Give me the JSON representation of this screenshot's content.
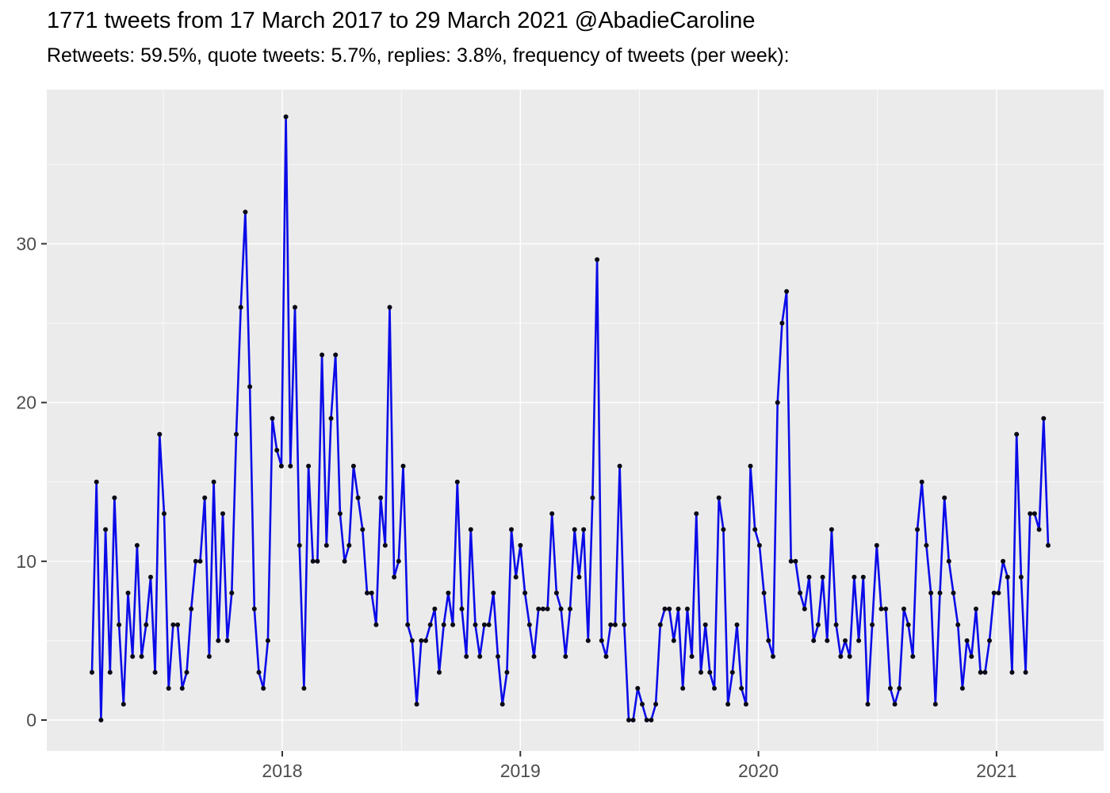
{
  "header": {
    "title": "1771 tweets from 17 March 2017 to 29 March 2021 @AbadieCaroline",
    "subtitle": "Retweets: 59.5%, quote tweets: 5.7%, replies: 3.8%, frequency of tweets (per week):"
  },
  "chart_data": {
    "type": "line",
    "title": "1771 tweets from 17 March 2017 to 29 March 2021 @AbadieCaroline",
    "subtitle": "Retweets: 59.5%, quote tweets: 5.7%, replies: 3.8%, frequency of tweets (per week):",
    "series_name": "tweets per week",
    "x_start": "17 March 2017",
    "x_end": "29 March 2021",
    "x_tick_labels": [
      "2018",
      "2019",
      "2020",
      "2021"
    ],
    "x_tick_pos": [
      0.199,
      0.448,
      0.697,
      0.946
    ],
    "x_minor_pos": [
      0.0746,
      0.3235,
      0.5725,
      0.8215
    ],
    "y_tick_labels": [
      "0",
      "10",
      "20",
      "30"
    ],
    "y_ticks": [
      0,
      10,
      20,
      30
    ],
    "y_minor_ticks": [
      5,
      15,
      25,
      35
    ],
    "ylim": [
      -2,
      39.6
    ],
    "grid": true,
    "legend": false,
    "values": [
      3,
      15,
      0,
      12,
      3,
      14,
      6,
      1,
      8,
      4,
      11,
      4,
      6,
      9,
      3,
      18,
      13,
      2,
      6,
      6,
      2,
      3,
      7,
      10,
      10,
      14,
      4,
      15,
      5,
      13,
      5,
      8,
      18,
      26,
      32,
      21,
      7,
      3,
      2,
      5,
      19,
      17,
      16,
      38,
      16,
      26,
      11,
      2,
      16,
      10,
      10,
      23,
      11,
      19,
      23,
      13,
      10,
      11,
      16,
      14,
      12,
      8,
      8,
      6,
      14,
      11,
      26,
      9,
      10,
      16,
      6,
      5,
      1,
      5,
      5,
      6,
      7,
      3,
      6,
      8,
      6,
      15,
      7,
      4,
      12,
      6,
      4,
      6,
      6,
      8,
      4,
      1,
      3,
      12,
      9,
      11,
      8,
      6,
      4,
      7,
      7,
      7,
      13,
      8,
      7,
      4,
      7,
      12,
      9,
      12,
      5,
      14,
      29,
      5,
      4,
      6,
      6,
      16,
      6,
      0,
      0,
      2,
      1,
      0,
      0,
      1,
      6,
      7,
      7,
      5,
      7,
      2,
      7,
      4,
      13,
      3,
      6,
      3,
      2,
      14,
      12,
      1,
      3,
      6,
      2,
      1,
      16,
      12,
      11,
      8,
      5,
      4,
      20,
      25,
      27,
      10,
      10,
      8,
      7,
      9,
      5,
      6,
      9,
      5,
      12,
      6,
      4,
      5,
      4,
      9,
      5,
      9,
      1,
      6,
      11,
      7,
      7,
      2,
      1,
      2,
      7,
      6,
      4,
      12,
      15,
      11,
      8,
      1,
      8,
      14,
      10,
      8,
      6,
      2,
      5,
      4,
      7,
      3,
      3,
      5,
      8,
      8,
      10,
      9,
      3,
      18,
      9,
      3,
      13,
      13,
      12,
      19,
      11
    ]
  },
  "style": {
    "panel_bg": "#EBEBEB",
    "grid_color": "#FFFFFF",
    "line_color": "#0B0BE8",
    "point_color": "#0A0A14",
    "axis_text_color": "#4D4D4D",
    "tick_mark_color": "#333333"
  }
}
